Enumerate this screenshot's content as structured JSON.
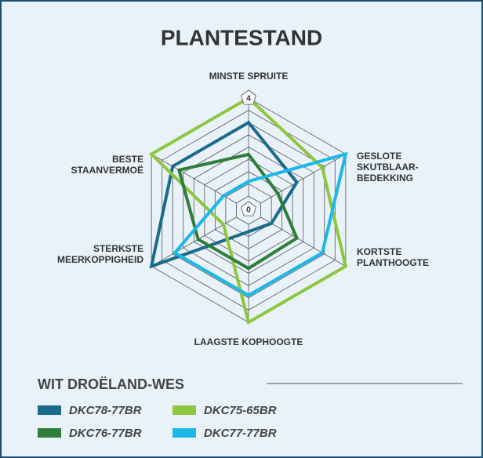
{
  "chart_data": {
    "type": "radar",
    "title": "PLANTESTAND",
    "categories": [
      [
        "MINSTE SPRUITE"
      ],
      [
        "GESLOTE",
        "SKUTBLAAR-",
        "BEDEKKING"
      ],
      [
        "KORTSTE",
        "PLANTHOOGTE"
      ],
      [
        "LAAGSTE KOPHOOGTE"
      ],
      [
        "STERKSTE",
        "MEERKOPPIGHEID"
      ],
      [
        "BESTE",
        "STAANVERMOË"
      ]
    ],
    "series": [
      {
        "name": "DKC78-77BR",
        "color": "#1a6b8c",
        "values": [
          3,
          1.7,
          0.5,
          0.3,
          4,
          3
        ]
      },
      {
        "name": "DKC75-65BR",
        "color": "#8dc63f",
        "values": [
          4,
          2.9,
          4,
          4,
          0.6,
          4
        ]
      },
      {
        "name": "DKC76-77BR",
        "color": "#2e7d3a",
        "values": [
          1.7,
          0.8,
          1.7,
          1.8,
          1.8,
          2.7
        ]
      },
      {
        "name": "DKC77-77BR",
        "color": "#1ab8e8",
        "values": [
          0.6,
          4,
          2.9,
          2.9,
          2.9,
          0.6
        ]
      }
    ],
    "ylim": [
      0,
      4
    ],
    "yticks": [
      0,
      0.5,
      1,
      1.5,
      2,
      2.5,
      3,
      3.5,
      4
    ],
    "legend_title": "WIT DROËLAND-WES"
  }
}
